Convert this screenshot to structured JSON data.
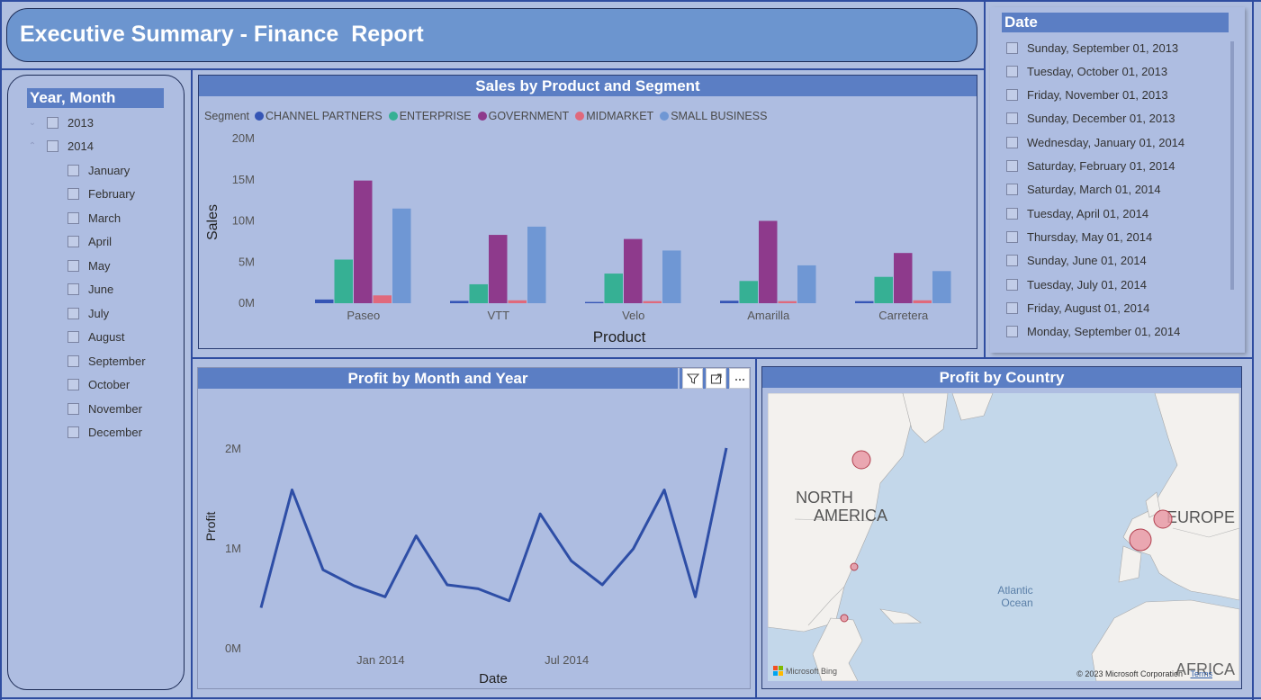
{
  "header": {
    "title": "Executive Summary - Finance  Report"
  },
  "year_month_slicer": {
    "title": "Year, Month",
    "years": [
      "2013",
      "2014"
    ],
    "months": [
      "January",
      "February",
      "March",
      "April",
      "May",
      "June",
      "July",
      "August",
      "September",
      "October",
      "November",
      "December"
    ]
  },
  "sales_chart": {
    "title": "Sales by Product and Segment",
    "legend_title": "Segment",
    "chart_data": {
      "type": "bar",
      "title": "Sales by Product and Segment",
      "xlabel": "Product",
      "ylabel": "Sales",
      "ylim": [
        0,
        20000000
      ],
      "yticks": [
        "0M",
        "5M",
        "10M",
        "15M",
        "20M"
      ],
      "categories": [
        "Paseo",
        "VTT",
        "Velo",
        "Amarilla",
        "Carretera"
      ],
      "series": [
        {
          "name": "CHANNEL PARTNERS",
          "color": "#3555b5",
          "values": [
            450000,
            280000,
            150000,
            300000,
            250000
          ]
        },
        {
          "name": "ENTERPRISE",
          "color": "#36b094",
          "values": [
            5300000,
            2300000,
            3600000,
            2700000,
            3200000
          ]
        },
        {
          "name": "GOVERNMENT",
          "color": "#8e3a8c",
          "values": [
            14900000,
            8300000,
            7800000,
            10000000,
            6100000
          ]
        },
        {
          "name": "MIDMARKET",
          "color": "#e0697c",
          "values": [
            950000,
            350000,
            250000,
            250000,
            350000
          ]
        },
        {
          "name": "SMALL BUSINESS",
          "color": "#6f97d4",
          "values": [
            11500000,
            9300000,
            6400000,
            4600000,
            3900000
          ]
        }
      ]
    }
  },
  "profit_chart": {
    "title": "Profit by Month and Year",
    "tools": {
      "filter_icon": "filter-icon",
      "focus_icon": "focus-mode-icon",
      "more_icon": "more-options-icon"
    },
    "chart_data": {
      "type": "line",
      "title": "Profit by Month and Year",
      "xlabel": "Date",
      "ylabel": "Profit",
      "ylim": [
        0,
        2000000
      ],
      "yticks": [
        "0M",
        "1M",
        "2M"
      ],
      "xticks": [
        "Jan 2014",
        "Jul 2014"
      ],
      "x": [
        "2013-09",
        "2013-10",
        "2013-11",
        "2013-12",
        "2014-01",
        "2014-02",
        "2014-03",
        "2014-04",
        "2014-05",
        "2014-06",
        "2014-07",
        "2014-08",
        "2014-09",
        "2014-10",
        "2014-11",
        "2014-12"
      ],
      "series": [
        {
          "color": "#2e4ea6",
          "values": [
            410000,
            1590000,
            790000,
            630000,
            520000,
            1130000,
            640000,
            600000,
            480000,
            1350000,
            880000,
            640000,
            1000000,
            1590000,
            520000,
            2010000
          ]
        }
      ]
    }
  },
  "date_slicer": {
    "title": "Date",
    "dates": [
      "Sunday, September 01, 2013",
      "Tuesday, October 01, 2013",
      "Friday, November 01, 2013",
      "Sunday, December 01, 2013",
      "Wednesday, January 01, 2014",
      "Saturday, February 01, 2014",
      "Saturday, March 01, 2014",
      "Tuesday, April 01, 2014",
      "Thursday, May 01, 2014",
      "Sunday, June 01, 2014",
      "Tuesday, July 01, 2014",
      "Friday, August 01, 2014",
      "Monday, September 01, 2014"
    ]
  },
  "map": {
    "title": "Profit by Country",
    "labels": {
      "north_america_1": "NORTH",
      "north_america_2": "AMERICA",
      "europe": "EUROPE",
      "africa": "AFRICA",
      "ocean_1": "Atlantic",
      "ocean_2": "Ocean"
    },
    "bing_logo": "Microsoft Bing",
    "copyright": "© 2023 Microsoft Corporation",
    "terms": "Terms",
    "colors": {
      "water": "#c3d7ea",
      "land": "#f3f1ee",
      "bubble": "#e89aa6",
      "bubble_stroke": "#b2404f"
    }
  }
}
